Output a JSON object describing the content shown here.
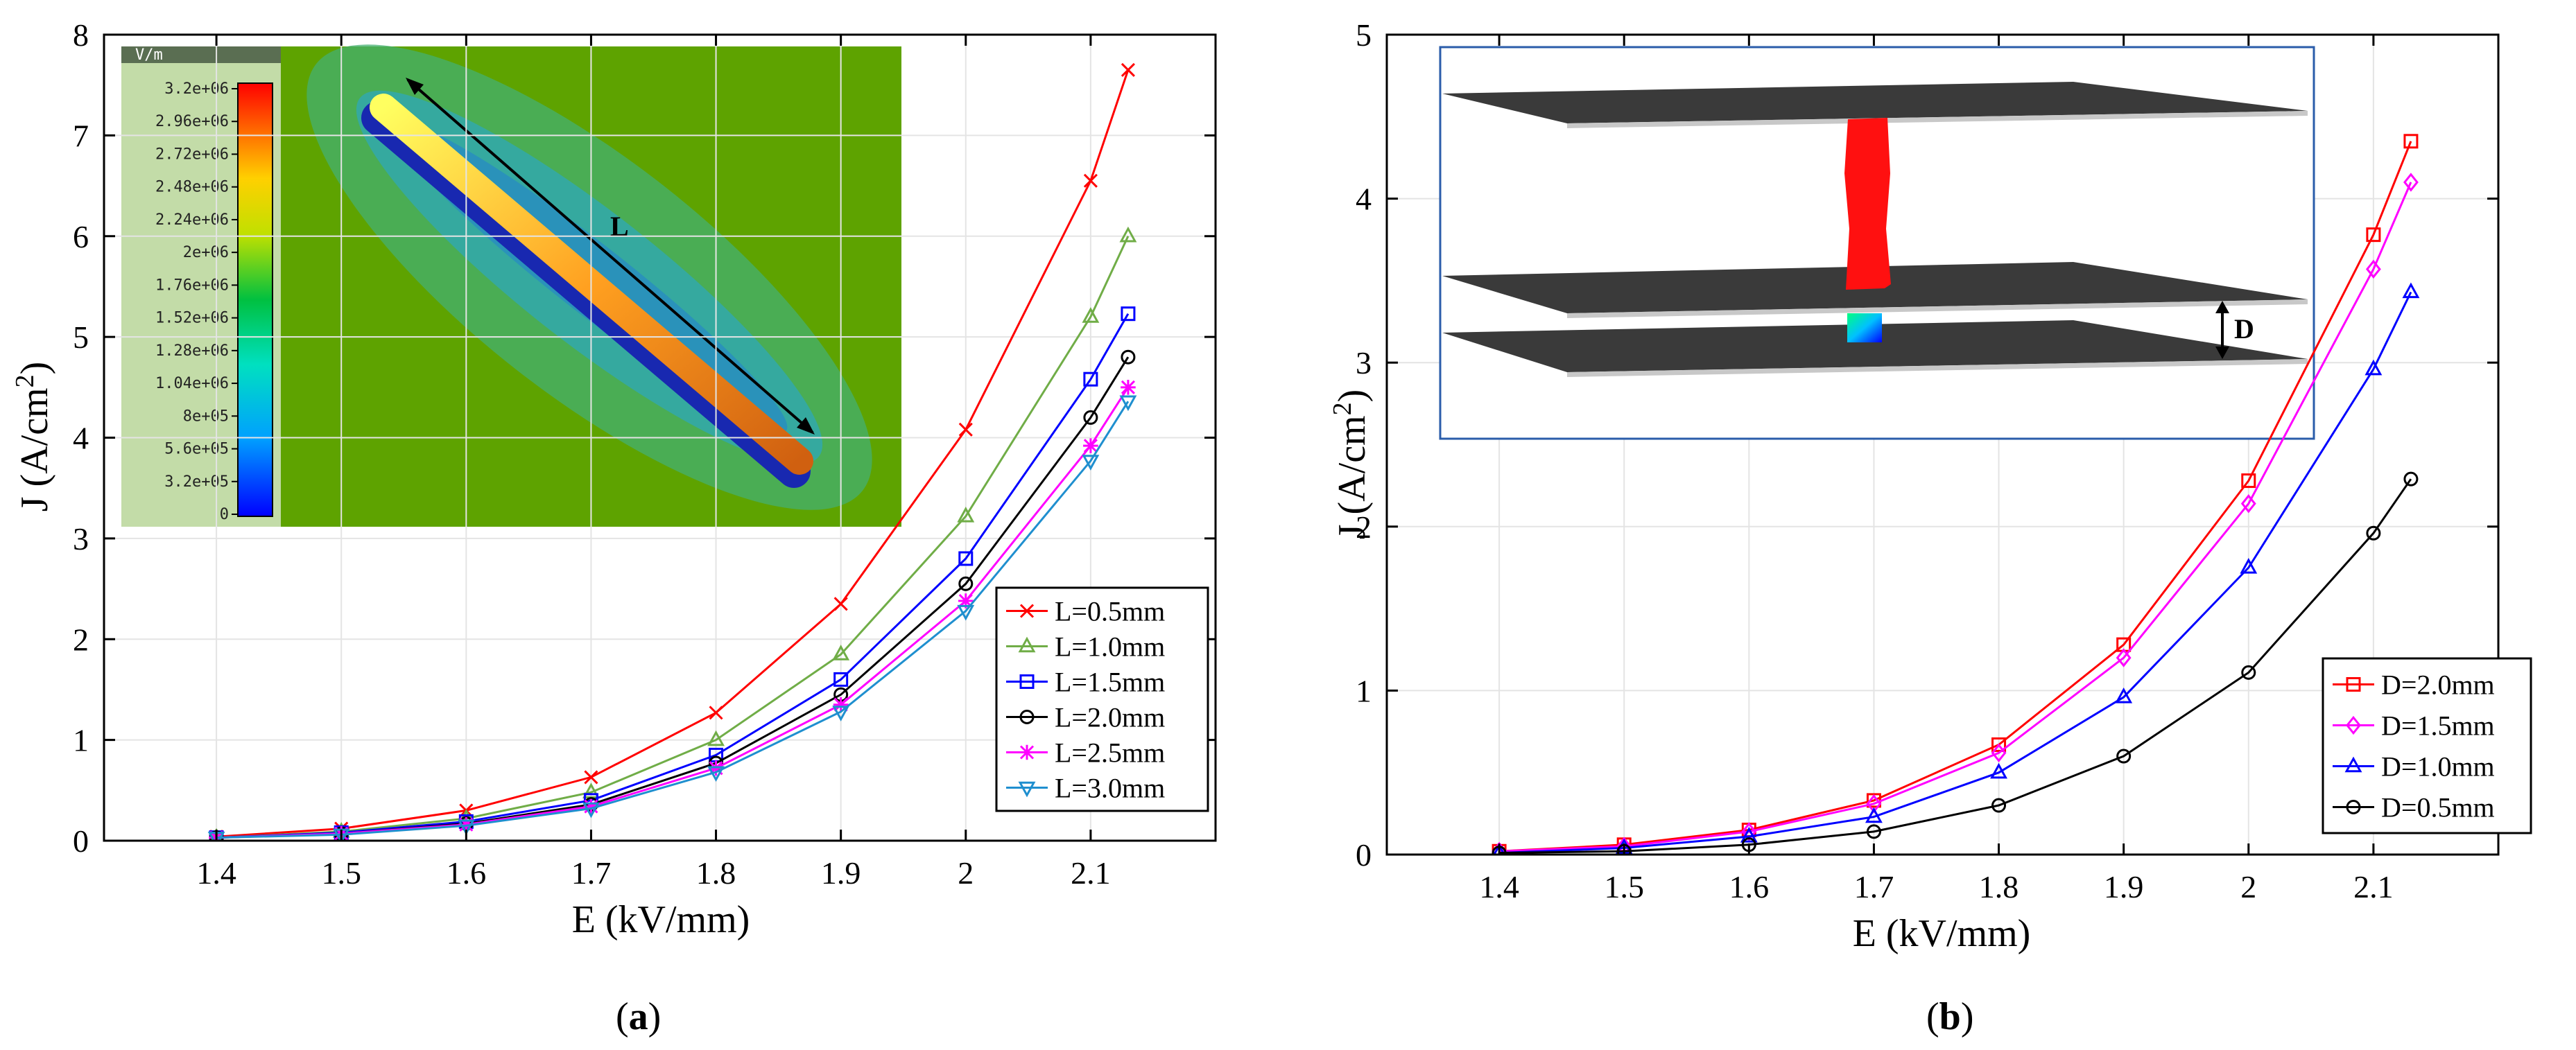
{
  "chart_data": [
    {
      "type": "line",
      "panel_label": "a",
      "x": [
        1.4,
        1.5,
        1.6,
        1.7,
        1.8,
        1.9,
        2.0,
        2.1,
        2.13
      ],
      "xticks": [
        1.4,
        1.5,
        1.6,
        1.7,
        1.8,
        1.9,
        2.0,
        2.1
      ],
      "xtick_labels": [
        "1.4",
        "1.5",
        "1.6",
        "1.7",
        "1.8",
        "1.9",
        "2",
        "2.1"
      ],
      "xlim": [
        1.31,
        2.2
      ],
      "ylim": [
        0,
        8
      ],
      "yticks": [
        0,
        1,
        2,
        3,
        4,
        5,
        6,
        7,
        8
      ],
      "ytick_labels": [
        "0",
        "1",
        "2",
        "3",
        "4",
        "5",
        "6",
        "7",
        "8"
      ],
      "xlabel": "E (kV/mm)",
      "ylabel_main": "J (A/cm",
      "ylabel_sup": "2",
      "ylabel_close": ")",
      "legend_position": "bottom-right",
      "series": [
        {
          "name": "L=0.5mm",
          "color": "#ff0000",
          "marker": "x",
          "values": [
            0.04,
            0.12,
            0.3,
            0.63,
            1.27,
            2.35,
            4.08,
            6.55,
            7.65
          ]
        },
        {
          "name": "L=1.0mm",
          "color": "#70ad47",
          "marker": "triangle-up",
          "values": [
            0.03,
            0.09,
            0.22,
            0.48,
            1.0,
            1.85,
            3.22,
            5.2,
            6.0
          ]
        },
        {
          "name": "L=1.5mm",
          "color": "#0000ff",
          "marker": "square",
          "values": [
            0.03,
            0.08,
            0.19,
            0.4,
            0.85,
            1.6,
            2.8,
            4.58,
            5.23
          ]
        },
        {
          "name": "L=2.0mm",
          "color": "#000000",
          "marker": "circle",
          "values": [
            0.03,
            0.07,
            0.17,
            0.36,
            0.77,
            1.45,
            2.55,
            4.2,
            4.8
          ]
        },
        {
          "name": "L=2.5mm",
          "color": "#ff00ff",
          "marker": "asterisk",
          "values": [
            0.03,
            0.07,
            0.16,
            0.34,
            0.72,
            1.35,
            2.38,
            3.92,
            4.5
          ]
        },
        {
          "name": "L=3.0mm",
          "color": "#1f8fcf",
          "marker": "triangle-down",
          "values": [
            0.03,
            0.06,
            0.15,
            0.32,
            0.68,
            1.28,
            2.28,
            3.77,
            4.36
          ]
        }
      ],
      "inset": {
        "dimension_label": "L",
        "colorbar_header": "V/m",
        "colorbar_labels": [
          "3.2e+06",
          "2.96e+06",
          "2.72e+06",
          "2.48e+06",
          "2.24e+06",
          "2e+06",
          "1.76e+06",
          "1.52e+06",
          "1.28e+06",
          "1.04e+06",
          "8e+05",
          "5.6e+05",
          "3.2e+05",
          "0"
        ]
      }
    },
    {
      "type": "line",
      "panel_label": "b",
      "x": [
        1.4,
        1.5,
        1.6,
        1.7,
        1.8,
        1.9,
        2.0,
        2.1,
        2.13
      ],
      "xticks": [
        1.4,
        1.5,
        1.6,
        1.7,
        1.8,
        1.9,
        2.0,
        2.1
      ],
      "xtick_labels": [
        "1.4",
        "1.5",
        "1.6",
        "1.7",
        "1.8",
        "1.9",
        "2",
        "2.1"
      ],
      "xlim": [
        1.31,
        2.2
      ],
      "ylim": [
        0,
        5
      ],
      "yticks": [
        0,
        1,
        2,
        3,
        4,
        5
      ],
      "ytick_labels": [
        "0",
        "1",
        "2",
        "3",
        "4",
        "5"
      ],
      "xlabel": "E (kV/mm)",
      "ylabel_main": "J (A/cm",
      "ylabel_sup": "2",
      "ylabel_close": ")",
      "legend_position": "bottom-right",
      "series": [
        {
          "name": "D=2.0mm",
          "color": "#ff0000",
          "marker": "square",
          "values": [
            0.02,
            0.06,
            0.15,
            0.33,
            0.67,
            1.28,
            2.28,
            3.78,
            4.35
          ]
        },
        {
          "name": "D=1.5mm",
          "color": "#ff00ff",
          "marker": "diamond",
          "values": [
            0.02,
            0.05,
            0.14,
            0.31,
            0.62,
            1.2,
            2.14,
            3.57,
            4.1
          ]
        },
        {
          "name": "D=1.0mm",
          "color": "#0000ff",
          "marker": "triangle-up",
          "values": [
            0.01,
            0.04,
            0.11,
            0.23,
            0.5,
            0.96,
            1.75,
            2.96,
            3.43
          ]
        },
        {
          "name": "D=0.5mm",
          "color": "#000000",
          "marker": "circle",
          "values": [
            0.01,
            0.02,
            0.06,
            0.14,
            0.3,
            0.6,
            1.11,
            1.96,
            2.29
          ]
        }
      ],
      "inset": {
        "dimension_label": "D"
      }
    }
  ]
}
